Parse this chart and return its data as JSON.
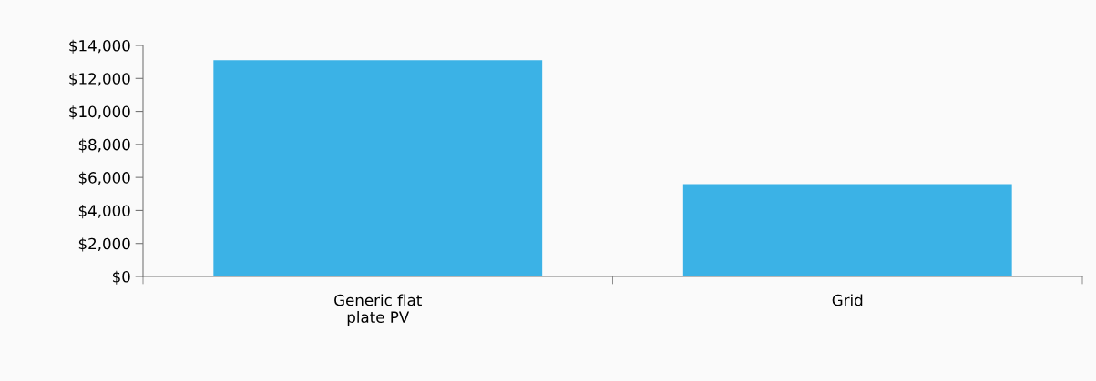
{
  "chart_data": {
    "type": "bar",
    "categories": [
      "Generic flat plate PV",
      "Grid"
    ],
    "values": [
      13100,
      5600
    ],
    "color": "#3bb2e6",
    "ylim": [
      0,
      14000
    ],
    "yticks": [
      {
        "value": 0,
        "label": "$0"
      },
      {
        "value": 2000,
        "label": "$2,000"
      },
      {
        "value": 4000,
        "label": "$4,000"
      },
      {
        "value": 6000,
        "label": "$6,000"
      },
      {
        "value": 8000,
        "label": "$8,000"
      },
      {
        "value": 10000,
        "label": "$10,000"
      },
      {
        "value": 12000,
        "label": "$12,000"
      },
      {
        "value": 14000,
        "label": "$14,000"
      }
    ],
    "grid": false,
    "legend": false
  }
}
